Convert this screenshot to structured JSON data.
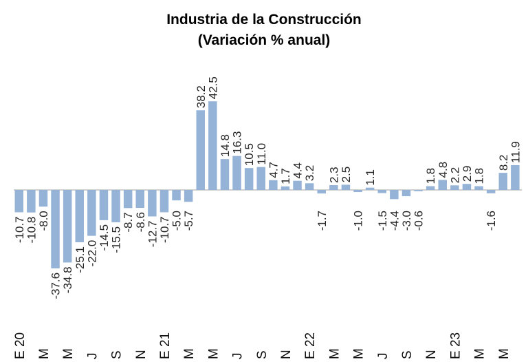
{
  "chart_data": {
    "type": "bar",
    "title": "Industria de la Construcción",
    "subtitle": "(Variación % anual)",
    "xlabel": "",
    "ylabel": "",
    "ylim": [
      -42,
      48
    ],
    "grid": false,
    "legend": "none",
    "colors": {
      "bar": "#95b3d7",
      "axis": "#bfbfbf"
    },
    "categories": [
      "E 20",
      "",
      "M",
      "",
      "M",
      "",
      "J",
      "",
      "S",
      "",
      "N",
      "",
      "E 21",
      "",
      "M",
      "",
      "M",
      "",
      "J",
      "",
      "S",
      "",
      "N",
      "",
      "E 22",
      "",
      "M",
      "",
      "M",
      "",
      "J",
      "",
      "S",
      "",
      "N",
      "",
      "E 23",
      "",
      "M",
      "",
      "M",
      ""
    ],
    "values": [
      -10.7,
      -10.8,
      -8.0,
      -37.6,
      -34.8,
      -25.1,
      -22.0,
      -14.5,
      -15.5,
      -8.7,
      -8.6,
      -12.7,
      -10.7,
      -5.0,
      -5.7,
      38.2,
      42.5,
      14.8,
      16.3,
      10.5,
      11.0,
      4.7,
      1.7,
      4.4,
      3.2,
      -1.7,
      2.3,
      2.5,
      -1.0,
      1.1,
      -1.5,
      -4.4,
      -3.0,
      -0.6,
      1.8,
      4.8,
      2.2,
      2.9,
      1.8,
      -1.6,
      8.2,
      11.9
    ],
    "value_labels": [
      "-10.7",
      "-10.8",
      "-8.0",
      "-37.6",
      "-34.8",
      "-25.1",
      "-22.0",
      "-14.5",
      "-15.5",
      "-8.7",
      "-8.6",
      "-12.7",
      "-10.7",
      "-5.0",
      "-5.7",
      "38.2",
      "42.5",
      "14.8",
      "16.3",
      "10.5",
      "11.0",
      "4.7",
      "1.7",
      "4.4",
      "3.2",
      "-1.7",
      "2.3",
      "2.5",
      "-1.0",
      "1.1",
      "-1.5",
      "-4.4",
      "-3.0",
      "-0.6",
      "1.8",
      "4.8",
      "2.2",
      "2.9",
      "1.8",
      "-1.6",
      "8.2",
      "11.9"
    ]
  }
}
